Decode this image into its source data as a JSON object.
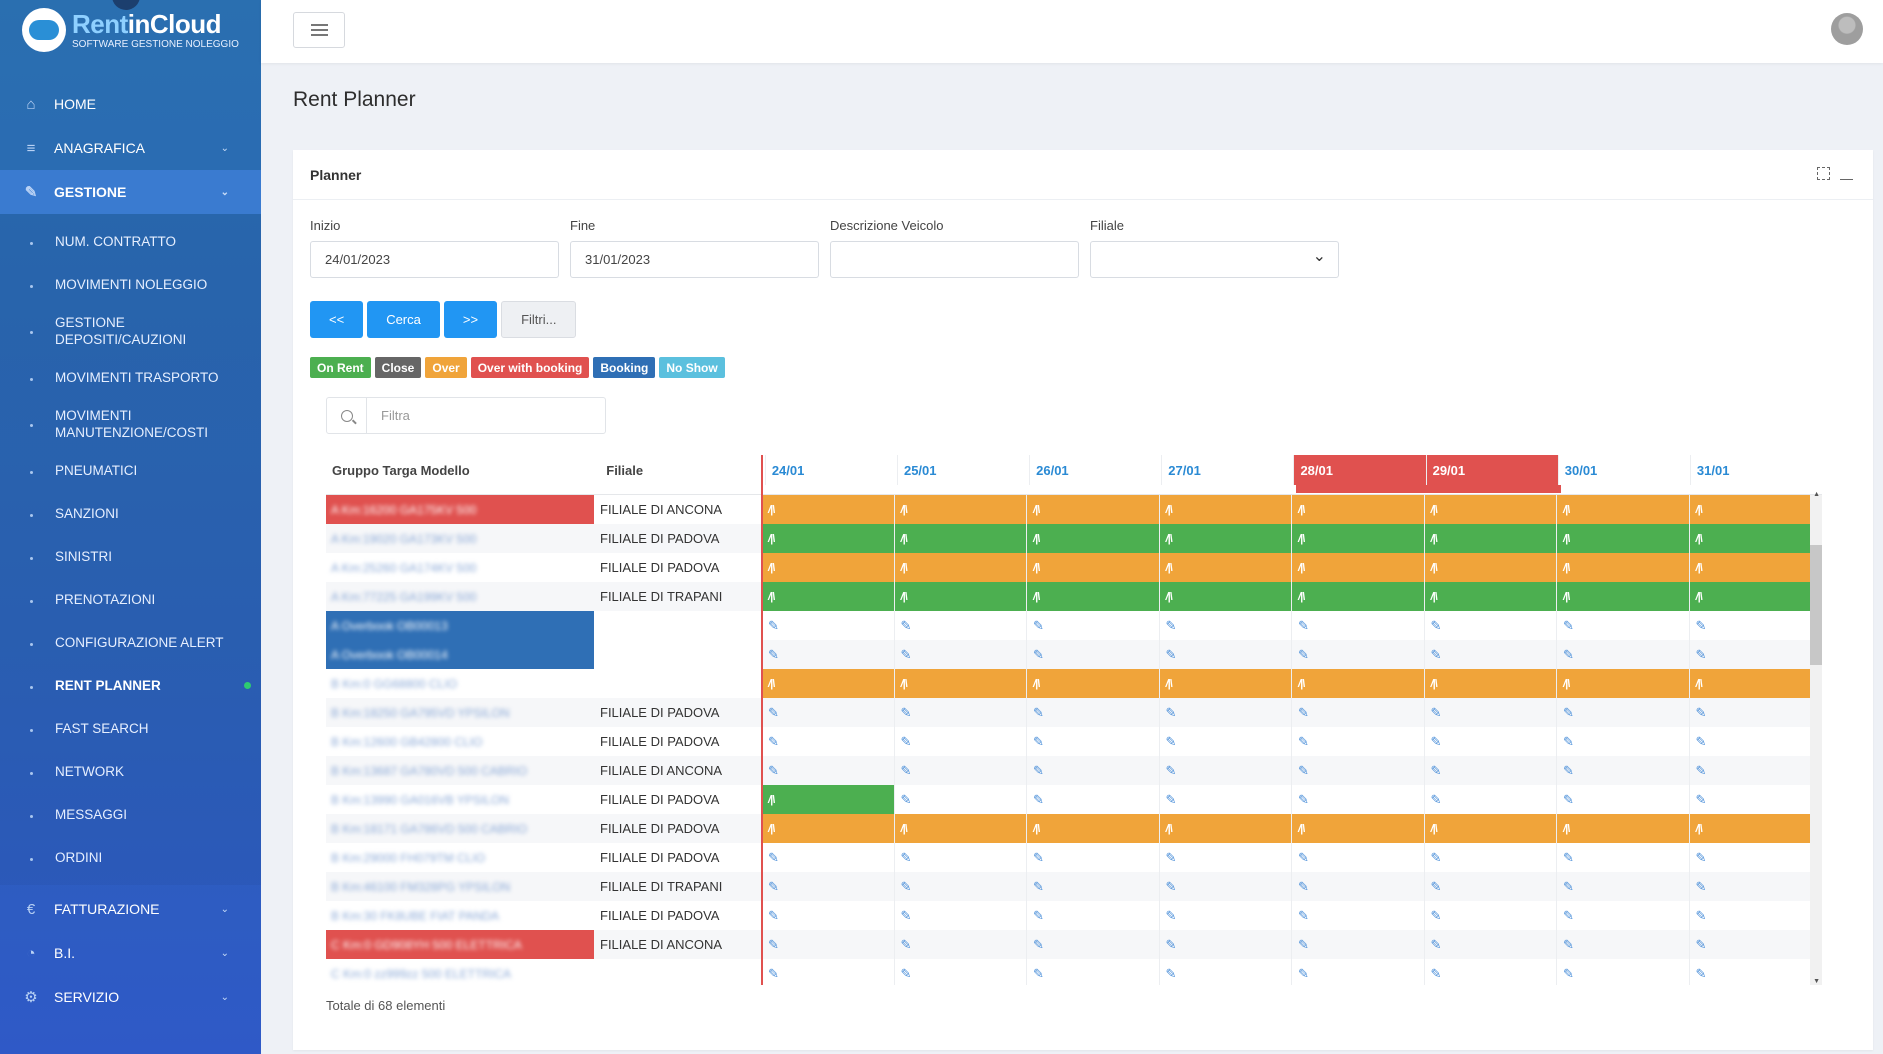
{
  "brand": {
    "name_part1": "Rent",
    "name_part2": "inCloud",
    "subtitle": "SOFTWARE GESTIONE NOLEGGIO"
  },
  "sidebar": {
    "top_items": [
      {
        "label": "HOME",
        "icon": "home-icon"
      },
      {
        "label": "ANAGRAFICA",
        "icon": "database-icon"
      },
      {
        "label": "GESTIONE",
        "icon": "edit-icon"
      }
    ],
    "sub_items": [
      "NUM. CONTRATTO",
      "MOVIMENTI NOLEGGIO",
      "GESTIONE DEPOSITI/CAUZIONI",
      "MOVIMENTI TRASPORTO",
      "MOVIMENTI MANUTENZIONE/COSTI",
      "PNEUMATICI",
      "SANZIONI",
      "SINISTRI",
      "PRENOTAZIONI",
      "CONFIGURAZIONE ALERT",
      "RENT PLANNER",
      "FAST SEARCH",
      "NETWORK",
      "MESSAGGI",
      "ORDINI"
    ],
    "bottom_items": [
      {
        "label": "FATTURAZIONE",
        "icon": "euro-icon"
      },
      {
        "label": "B.I.",
        "icon": "chart-icon"
      },
      {
        "label": "SERVIZIO",
        "icon": "gear-icon"
      }
    ]
  },
  "page": {
    "title": "Rent Planner"
  },
  "panel": {
    "title": "Planner"
  },
  "filters": {
    "start_label": "Inizio",
    "start_value": "24/01/2023",
    "end_label": "Fine",
    "end_value": "31/01/2023",
    "desc_label": "Descrizione Veicolo",
    "desc_value": "",
    "branch_label": "Filiale",
    "branch_value": ""
  },
  "buttons": {
    "prev": "<<",
    "search": "Cerca",
    "next": ">>",
    "filters": "Filtri..."
  },
  "legend": [
    {
      "label": "On Rent",
      "color": "#4caf50"
    },
    {
      "label": "Close",
      "color": "#666666"
    },
    {
      "label": "Over",
      "color": "#f0a43a"
    },
    {
      "label": "Over with booking",
      "color": "#e0514f"
    },
    {
      "label": "Booking",
      "color": "#2f6fb5"
    },
    {
      "label": "No Show",
      "color": "#5bc0de"
    }
  ],
  "search": {
    "placeholder": "Filtra"
  },
  "grid": {
    "col_group": "Gruppo Targa Modello",
    "col_branch": "Filiale",
    "days": [
      "24/01",
      "25/01",
      "26/01",
      "27/01",
      "28/01",
      "29/01",
      "30/01",
      "31/01"
    ],
    "weekend_days": [
      4,
      5
    ],
    "rows": [
      {
        "vehicle": "A Km:16200 GA175KV 500",
        "branch": "FILIALE DI ANCONA",
        "label_bg": "#e0514f",
        "cells": [
          "o",
          "o",
          "o",
          "o",
          "o",
          "o",
          "o",
          "o"
        ]
      },
      {
        "vehicle": "A Km:19020 GA173KV 500",
        "branch": "FILIALE DI PADOVA",
        "label_bg": "",
        "cells": [
          "g",
          "g",
          "g",
          "g",
          "g",
          "g",
          "g",
          "g"
        ]
      },
      {
        "vehicle": "A Km:25260 GA174KV 500",
        "branch": "FILIALE DI PADOVA",
        "label_bg": "",
        "cells": [
          "o",
          "o",
          "o",
          "o",
          "o",
          "o",
          "o",
          "o"
        ]
      },
      {
        "vehicle": "A Km:77225 GA199KV 500",
        "branch": "FILIALE DI TRAPANI",
        "label_bg": "",
        "cells": [
          "g",
          "g",
          "g",
          "g",
          "g",
          "g",
          "g",
          "g"
        ]
      },
      {
        "vehicle": "A Overbook OB00013",
        "branch": "",
        "label_bg": "#2f6fb5",
        "cells": [
          "p",
          "p",
          "p",
          "p",
          "p",
          "p",
          "p",
          "p"
        ]
      },
      {
        "vehicle": "A Overbook OB00014",
        "branch": "",
        "label_bg": "#2f6fb5",
        "cells": [
          "p",
          "p",
          "p",
          "p",
          "p",
          "p",
          "p",
          "p"
        ]
      },
      {
        "vehicle": "B Km:0 GG68800 CLIO",
        "branch": "",
        "label_bg": "",
        "cells": [
          "o",
          "o",
          "o",
          "o",
          "o",
          "o",
          "o",
          "o"
        ]
      },
      {
        "vehicle": "B Km:18250 GA795VD YPSILON",
        "branch": "FILIALE DI PADOVA",
        "label_bg": "",
        "cells": [
          "p",
          "p",
          "p",
          "p",
          "p",
          "p",
          "p",
          "p"
        ]
      },
      {
        "vehicle": "B Km:12600 GB42800 CLIO",
        "branch": "FILIALE DI PADOVA",
        "label_bg": "",
        "cells": [
          "p",
          "p",
          "p",
          "p",
          "p",
          "p",
          "p",
          "p"
        ]
      },
      {
        "vehicle": "B Km:13687 GA780VD 500 CABRIO",
        "branch": "FILIALE DI ANCONA",
        "label_bg": "",
        "cells": [
          "p",
          "p",
          "p",
          "p",
          "p",
          "p",
          "p",
          "p"
        ]
      },
      {
        "vehicle": "B Km:13990 GA016VB YPSILON",
        "branch": "FILIALE DI PADOVA",
        "label_bg": "",
        "cells": [
          "g",
          "p",
          "p",
          "p",
          "p",
          "p",
          "p",
          "p"
        ]
      },
      {
        "vehicle": "B Km:18171 GA786VD 500 CABRIO",
        "branch": "FILIALE DI PADOVA",
        "label_bg": "",
        "cells": [
          "o",
          "o",
          "o",
          "o",
          "o",
          "o",
          "o",
          "o"
        ]
      },
      {
        "vehicle": "B Km:29000 FH079TM CLIO",
        "branch": "FILIALE DI PADOVA",
        "label_bg": "",
        "cells": [
          "p",
          "p",
          "p",
          "p",
          "p",
          "p",
          "p",
          "p"
        ]
      },
      {
        "vehicle": "B Km:46100 FM328PG YPSILON",
        "branch": "FILIALE DI TRAPANI",
        "label_bg": "",
        "cells": [
          "p",
          "p",
          "p",
          "p",
          "p",
          "p",
          "p",
          "p"
        ]
      },
      {
        "vehicle": "B Km:30 FK8UBE FIAT PANDA",
        "branch": "FILIALE DI PADOVA",
        "label_bg": "",
        "cells": [
          "p",
          "p",
          "p",
          "p",
          "p",
          "p",
          "p",
          "p"
        ]
      },
      {
        "vehicle": "C Km:0 GD908YH 500 ELETTRICA",
        "branch": "FILIALE DI ANCONA",
        "label_bg": "#e0514f",
        "cells": [
          "p",
          "p",
          "p",
          "p",
          "p",
          "p",
          "p",
          "p"
        ]
      },
      {
        "vehicle": "C Km:0 zz999zz 500 ELETTRICA",
        "branch": "",
        "label_bg": "",
        "cells": [
          "p",
          "p",
          "p",
          "p",
          "p",
          "p",
          "p",
          "p"
        ]
      }
    ]
  },
  "footer": {
    "total": "Totale di 68 elementi"
  },
  "colors": {
    "orange": "#f0a43a",
    "green": "#4caf50",
    "red": "#e0514f",
    "blue": "#2f6fb5",
    "accent": "#2196f3"
  },
  "cell_glyphs": {
    "road": "/|\\",
    "pencil": "✎"
  }
}
